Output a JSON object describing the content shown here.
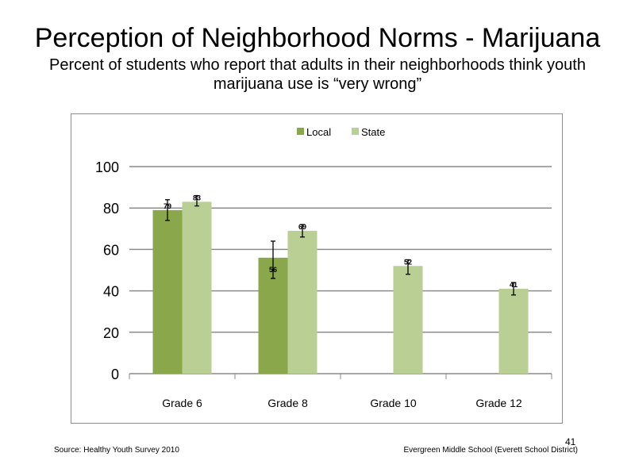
{
  "slide": {
    "title": "Perception  of Neighborhood  Norms - Marijuana",
    "subtitle": "Percent of students  who report that adults in their neighborhoods think youth marijuana  use is “very wrong”",
    "footer_left": "Source: Healthy Youth Survey 2010",
    "footer_right": "Evergreen Middle  School (Everett School District)",
    "page_number": "41"
  },
  "colors": {
    "local": "#8aa84b",
    "state": "#b9cf93",
    "grid": "#8c8c8c"
  },
  "chart_data": {
    "type": "bar",
    "categories": [
      "Grade 6",
      "Grade 8",
      "Grade 10",
      "Grade 12"
    ],
    "series": [
      {
        "name": "Local",
        "values": [
          79,
          56,
          null,
          null
        ],
        "labels": [
          "79",
          "56",
          "",
          ""
        ],
        "error_low": [
          74,
          46,
          null,
          null
        ],
        "error_high": [
          84,
          64,
          null,
          null
        ]
      },
      {
        "name": "State",
        "values": [
          83,
          69,
          52,
          41
        ],
        "labels": [
          "83",
          "69",
          "52",
          "41"
        ],
        "error_low": [
          81,
          66,
          48,
          38
        ],
        "error_high": [
          86,
          72,
          55,
          44
        ]
      }
    ],
    "ylim": [
      0,
      100
    ],
    "yticks": [
      "0",
      "20",
      "40",
      "60",
      "80",
      "100"
    ],
    "grid": true,
    "legend": "top-center",
    "xlabel": "",
    "ylabel": ""
  }
}
